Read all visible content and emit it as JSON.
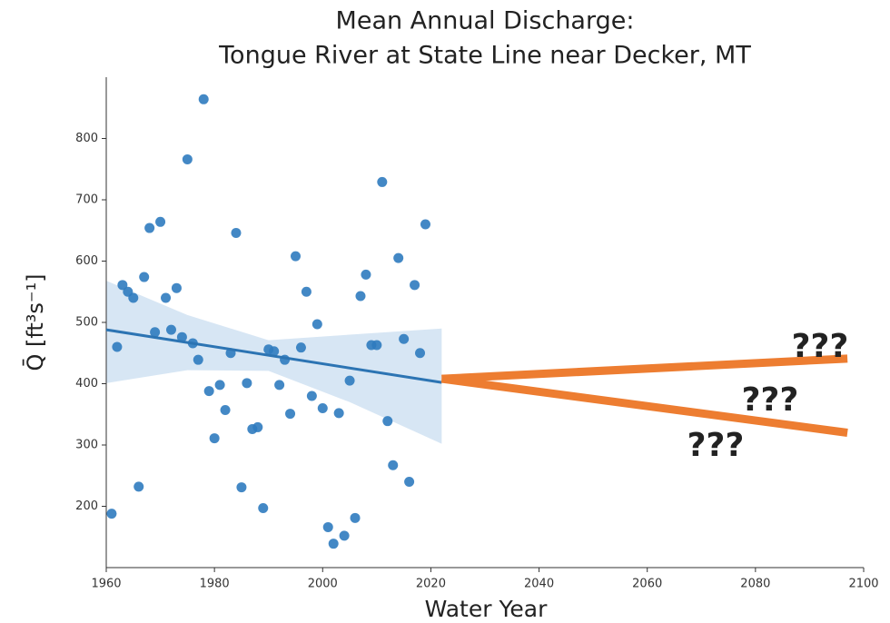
{
  "chart_data": {
    "type": "scatter",
    "title": [
      "Mean Annual Discharge:",
      "Tongue River at State Line near Decker, MT"
    ],
    "x_label": "Water Year",
    "y_label": "Q̄ [ft³s⁻¹]",
    "xlim": [
      1960,
      2100
    ],
    "xticks": [
      1960,
      1980,
      2000,
      2020,
      2040,
      2060,
      2080,
      2100
    ],
    "ylim": [
      100,
      900
    ],
    "yticks": [
      200,
      300,
      400,
      500,
      600,
      700,
      800
    ],
    "color": "#2f7bbf",
    "x": [
      1961,
      1962,
      1963,
      1964,
      1965,
      1966,
      1967,
      1968,
      1969,
      1970,
      1971,
      1972,
      1973,
      1974,
      1975,
      1976,
      1977,
      1978,
      1979,
      1980,
      1981,
      1982,
      1983,
      1984,
      1985,
      1986,
      1987,
      1988,
      1989,
      1990,
      1991,
      1992,
      1993,
      1994,
      1995,
      1996,
      1997,
      1998,
      1999,
      2000,
      2001,
      2002,
      2003,
      2004,
      2005,
      2006,
      2007,
      2008,
      2009,
      2010,
      2011,
      2012,
      2013,
      2014,
      2015,
      2016,
      2017,
      2018,
      2019
    ],
    "values": [
      188,
      460,
      561,
      550,
      540,
      232,
      574,
      654,
      484,
      664,
      540,
      488,
      556,
      476,
      766,
      466,
      439,
      864,
      388,
      311,
      398,
      357,
      450,
      646,
      231,
      401,
      326,
      329,
      197,
      456,
      453,
      398,
      439,
      351,
      608,
      459,
      550,
      380,
      497,
      360,
      166,
      139,
      352,
      152,
      405,
      181,
      543,
      578,
      463,
      463,
      729,
      339,
      267,
      605,
      473,
      240,
      561,
      450,
      660
    ],
    "fit": {
      "x": [
        1960,
        2022
      ],
      "values": [
        488,
        402
      ],
      "color": "#2c74b3"
    },
    "band": {
      "x": [
        1960,
        1975,
        1990,
        2005,
        2022
      ],
      "lower": [
        401,
        422,
        421,
        370,
        302
      ],
      "upper": [
        568,
        512,
        471,
        480,
        490
      ],
      "color": "#c6dbef"
    },
    "projections": [
      {
        "x": [
          2022,
          2097
        ],
        "values": [
          408,
          441
        ]
      },
      {
        "x": [
          2022,
          2097
        ],
        "values": [
          408,
          320
        ]
      }
    ],
    "projection_color": "#ed7d31",
    "annotations": [
      "???",
      "???",
      "???"
    ]
  }
}
